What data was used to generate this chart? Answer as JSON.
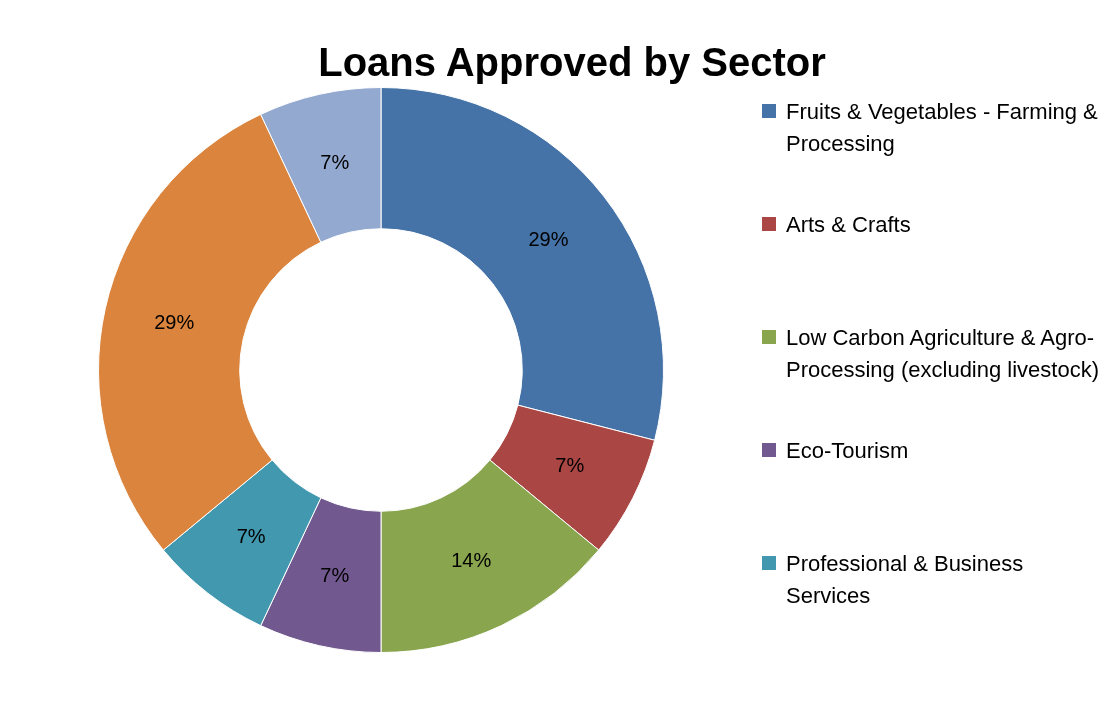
{
  "chart_data": {
    "type": "donut",
    "title": "Loans Approved by Sector",
    "categories": [
      "Fruits & Vegetables - Farming & Processing",
      "Arts & Crafts",
      "Low Carbon Agriculture & Agro-Processing (excluding livestock)",
      "Eco-Tourism",
      "Professional & Business Services",
      null,
      null
    ],
    "values": [
      29,
      7,
      14,
      7,
      7,
      29,
      7
    ],
    "colors": [
      "#4572a7",
      "#aa4643",
      "#89a54e",
      "#71588f",
      "#4198af",
      "#db843d",
      "#93a9cf"
    ],
    "value_labels": [
      "29%",
      "7%",
      "14%",
      "7%",
      "7%",
      "29%",
      "7%"
    ],
    "legend": "right"
  }
}
